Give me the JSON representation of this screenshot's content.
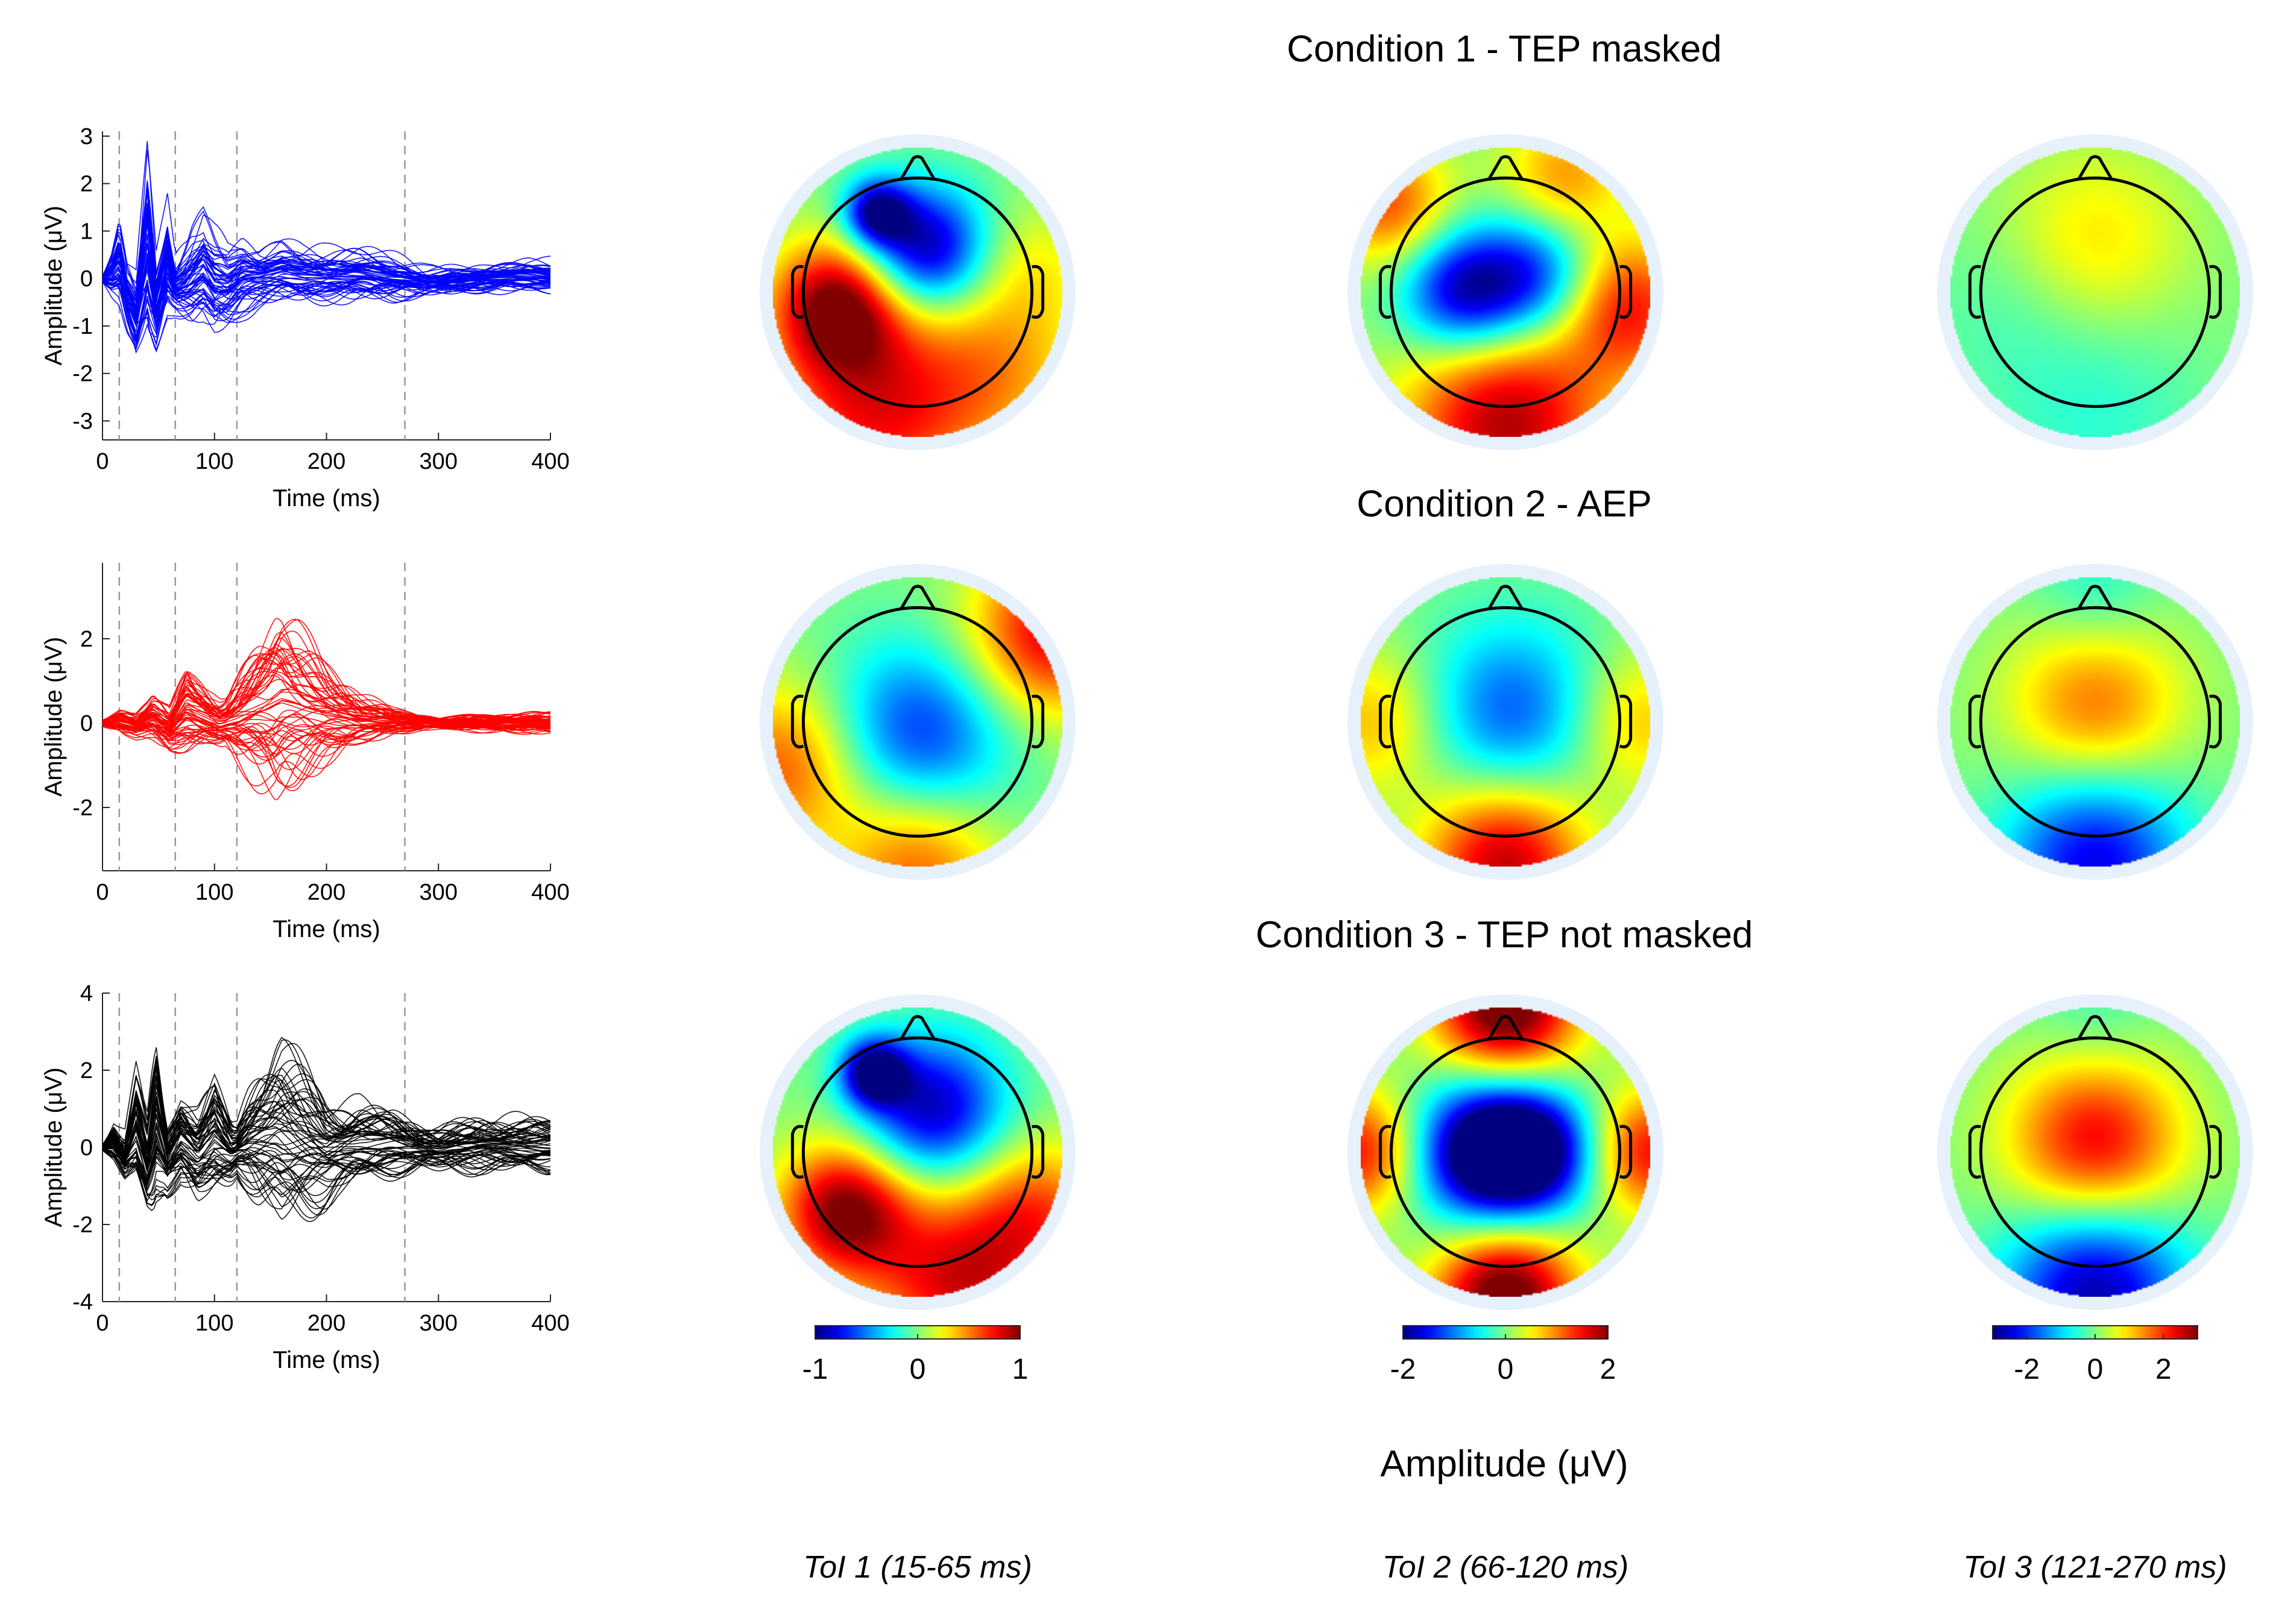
{
  "chart_data": {
    "type": "figure",
    "conditions": [
      {
        "title": "Condition 1 - TEP masked",
        "butterfly": {
          "type": "line",
          "color": "#0000ff",
          "xlabel": "Time (ms)",
          "ylabel": "Amplitude (μV)",
          "xlim": [
            0,
            400
          ],
          "ylim": [
            -3.4,
            3.1
          ],
          "xticks": [
            0,
            100,
            200,
            300,
            400
          ],
          "yticks": [
            -3,
            -2,
            -1,
            0,
            1,
            2,
            3
          ],
          "toi_lines_ms": [
            15,
            65,
            120,
            270
          ],
          "mean_waveform": [
            [
              0,
              0
            ],
            [
              8,
              0.2
            ],
            [
              15,
              0.7
            ],
            [
              22,
              -0.6
            ],
            [
              30,
              -1.3
            ],
            [
              40,
              1.3
            ],
            [
              48,
              -1.0
            ],
            [
              58,
              0.6
            ],
            [
              65,
              -0.4
            ],
            [
              75,
              -0.2
            ],
            [
              90,
              0.3
            ],
            [
              100,
              -0.2
            ],
            [
              112,
              -0.3
            ],
            [
              125,
              0.1
            ],
            [
              140,
              0.1
            ],
            [
              160,
              0.3
            ],
            [
              180,
              0.15
            ],
            [
              200,
              0.1
            ],
            [
              230,
              0.15
            ],
            [
              260,
              0.0
            ],
            [
              290,
              -0.1
            ],
            [
              320,
              -0.05
            ],
            [
              350,
              0.05
            ],
            [
              380,
              0.1
            ],
            [
              400,
              0.05
            ]
          ],
          "peak_spread": [
            [
              0,
              0.1
            ],
            [
              15,
              1.0
            ],
            [
              30,
              2.0
            ],
            [
              42,
              2.3
            ],
            [
              55,
              1.4
            ],
            [
              65,
              1.0
            ],
            [
              80,
              1.6
            ],
            [
              100,
              1.8
            ],
            [
              120,
              1.3
            ],
            [
              140,
              0.9
            ],
            [
              180,
              0.8
            ],
            [
              220,
              0.8
            ],
            [
              260,
              0.7
            ],
            [
              300,
              0.5
            ],
            [
              340,
              0.45
            ],
            [
              400,
              0.45
            ]
          ]
        },
        "topoplots": [
          {
            "window": "ToI 1",
            "pattern": [
              {
                "x": -0.55,
                "y": 0.1,
                "v": 1.0,
                "s": 0.32
              },
              {
                "x": 0.05,
                "y": -0.3,
                "v": -1.0,
                "s": 0.3
              },
              {
                "x": -0.28,
                "y": -0.55,
                "v": -0.9,
                "s": 0.16
              },
              {
                "x": -0.3,
                "y": 0.85,
                "v": 0.7,
                "s": 0.5
              },
              {
                "x": 0.55,
                "y": 0.5,
                "v": 0.4,
                "s": 0.45
              },
              {
                "x": 0.8,
                "y": -0.2,
                "v": 0.2,
                "s": 0.3
              }
            ]
          },
          {
            "window": "ToI 2",
            "pattern": [
              {
                "x": -0.3,
                "y": 0.0,
                "v": -1.8,
                "s": 0.3
              },
              {
                "x": 0.2,
                "y": -0.1,
                "v": -1.4,
                "s": 0.3
              },
              {
                "x": 0.0,
                "y": 0.9,
                "v": 1.8,
                "s": 0.5
              },
              {
                "x": 0.85,
                "y": 0.1,
                "v": 1.4,
                "s": 0.35
              },
              {
                "x": -0.8,
                "y": -0.6,
                "v": 1.2,
                "s": 0.3
              },
              {
                "x": 0.4,
                "y": -0.8,
                "v": 0.9,
                "s": 0.3
              }
            ]
          },
          {
            "window": "ToI 3",
            "pattern": [
              {
                "x": 0.0,
                "y": -0.35,
                "v": 0.9,
                "s": 0.45
              },
              {
                "x": 0.0,
                "y": 0.8,
                "v": -0.5,
                "s": 0.5
              },
              {
                "x": -0.6,
                "y": 0.1,
                "v": -0.3,
                "s": 0.4
              }
            ]
          }
        ]
      },
      {
        "title": "Condition 2 - AEP",
        "butterfly": {
          "type": "line",
          "color": "#ff0000",
          "xlabel": "Time (ms)",
          "ylabel": "Amplitude (μV)",
          "xlim": [
            0,
            400
          ],
          "ylim": [
            -3.5,
            3.8
          ],
          "xticks": [
            0,
            100,
            200,
            300,
            400
          ],
          "yticks": [
            -2,
            0,
            2
          ],
          "toi_lines_ms": [
            15,
            65,
            120,
            270
          ],
          "mean_waveform": [
            [
              0,
              0
            ],
            [
              15,
              0.1
            ],
            [
              30,
              -0.1
            ],
            [
              45,
              0.2
            ],
            [
              60,
              -0.3
            ],
            [
              75,
              0.5
            ],
            [
              90,
              0.2
            ],
            [
              105,
              -0.1
            ],
            [
              120,
              0.1
            ],
            [
              140,
              0.5
            ],
            [
              160,
              0.8
            ],
            [
              180,
              0.5
            ],
            [
              200,
              0.3
            ],
            [
              230,
              0.1
            ],
            [
              260,
              0.05
            ],
            [
              300,
              0
            ],
            [
              340,
              0
            ],
            [
              400,
              0
            ]
          ],
          "peak_spread": [
            [
              0,
              0.1
            ],
            [
              20,
              0.4
            ],
            [
              40,
              0.5
            ],
            [
              60,
              0.9
            ],
            [
              75,
              1.3
            ],
            [
              95,
              0.9
            ],
            [
              110,
              0.8
            ],
            [
              125,
              1.5
            ],
            [
              155,
              2.8
            ],
            [
              175,
              2.3
            ],
            [
              200,
              1.5
            ],
            [
              230,
              0.8
            ],
            [
              260,
              0.4
            ],
            [
              300,
              0.2
            ],
            [
              350,
              0.3
            ],
            [
              400,
              0.35
            ]
          ]
        },
        "topoplots": [
          {
            "window": "ToI 1",
            "pattern": [
              {
                "x": 0.0,
                "y": 0.1,
                "v": -0.7,
                "s": 0.45
              },
              {
                "x": 0.9,
                "y": -0.6,
                "v": 0.8,
                "s": 0.4
              },
              {
                "x": -0.9,
                "y": 0.3,
                "v": 0.6,
                "s": 0.4
              },
              {
                "x": 0.0,
                "y": 0.95,
                "v": 0.6,
                "s": 0.4
              }
            ]
          },
          {
            "window": "ToI 2",
            "pattern": [
              {
                "x": 0.05,
                "y": -0.05,
                "v": -1.2,
                "s": 0.45
              },
              {
                "x": 0.0,
                "y": 0.95,
                "v": 1.8,
                "s": 0.4
              },
              {
                "x": -0.9,
                "y": 0.0,
                "v": 0.8,
                "s": 0.35
              },
              {
                "x": 0.9,
                "y": 0.0,
                "v": 0.8,
                "s": 0.35
              }
            ]
          },
          {
            "window": "ToI 3",
            "pattern": [
              {
                "x": 0.0,
                "y": -0.1,
                "v": 1.6,
                "s": 0.42
              },
              {
                "x": 0.0,
                "y": 0.95,
                "v": -2.4,
                "s": 0.45
              },
              {
                "x": 0.0,
                "y": -0.9,
                "v": -0.6,
                "s": 0.3
              }
            ]
          }
        ]
      },
      {
        "title": "Condition 3 - TEP not masked",
        "butterfly": {
          "type": "line",
          "color": "#000000",
          "xlabel": "Time (ms)",
          "ylabel": "Amplitude (μV)",
          "xlim": [
            0,
            400
          ],
          "ylim": [
            -4,
            4
          ],
          "xticks": [
            0,
            100,
            200,
            300,
            400
          ],
          "yticks": [
            -4,
            -2,
            0,
            2,
            4
          ],
          "toi_lines_ms": [
            15,
            65,
            120,
            270
          ],
          "mean_waveform": [
            [
              0,
              0
            ],
            [
              10,
              0.2
            ],
            [
              20,
              -0.5
            ],
            [
              30,
              0.8
            ],
            [
              40,
              -0.8
            ],
            [
              48,
              1.0
            ],
            [
              58,
              -0.6
            ],
            [
              70,
              0.3
            ],
            [
              85,
              -0.4
            ],
            [
              100,
              0.4
            ],
            [
              115,
              -0.3
            ],
            [
              130,
              0.2
            ],
            [
              155,
              0.6
            ],
            [
              175,
              0.3
            ],
            [
              200,
              -0.2
            ],
            [
              230,
              0.1
            ],
            [
              260,
              0.1
            ],
            [
              300,
              -0.1
            ],
            [
              340,
              0.1
            ],
            [
              400,
              0.05
            ]
          ],
          "peak_spread": [
            [
              0,
              0.1
            ],
            [
              15,
              0.8
            ],
            [
              30,
              1.6
            ],
            [
              45,
              2.3
            ],
            [
              55,
              1.5
            ],
            [
              70,
              1.4
            ],
            [
              85,
              2.0
            ],
            [
              100,
              2.0
            ],
            [
              120,
              1.0
            ],
            [
              140,
              2.4
            ],
            [
              160,
              3.2
            ],
            [
              185,
              2.4
            ],
            [
              210,
              1.6
            ],
            [
              250,
              1.2
            ],
            [
              290,
              0.9
            ],
            [
              340,
              0.9
            ],
            [
              400,
              0.9
            ]
          ]
        },
        "topoplots": [
          {
            "window": "ToI 1",
            "pattern": [
              {
                "x": -0.5,
                "y": 0.4,
                "v": 1.0,
                "s": 0.32
              },
              {
                "x": 0.1,
                "y": -0.3,
                "v": -0.9,
                "s": 0.35
              },
              {
                "x": -0.3,
                "y": -0.55,
                "v": -1.0,
                "s": 0.16
              },
              {
                "x": 0.3,
                "y": 0.9,
                "v": 0.8,
                "s": 0.45
              },
              {
                "x": 0.85,
                "y": 0.4,
                "v": 0.5,
                "s": 0.35
              }
            ]
          },
          {
            "window": "ToI 2",
            "pattern": [
              {
                "x": -0.15,
                "y": 0.0,
                "v": -2.3,
                "s": 0.35
              },
              {
                "x": 0.2,
                "y": 0.0,
                "v": -1.8,
                "s": 0.3
              },
              {
                "x": 0.0,
                "y": -1.0,
                "v": 2.3,
                "s": 0.35
              },
              {
                "x": 0.0,
                "y": 1.0,
                "v": 2.3,
                "s": 0.35
              },
              {
                "x": -1.0,
                "y": 0.0,
                "v": 1.5,
                "s": 0.3
              },
              {
                "x": 1.0,
                "y": 0.0,
                "v": 1.5,
                "s": 0.3
              }
            ]
          },
          {
            "window": "ToI 3",
            "pattern": [
              {
                "x": 0.0,
                "y": -0.05,
                "v": 2.4,
                "s": 0.42
              },
              {
                "x": 0.0,
                "y": 0.95,
                "v": -2.8,
                "s": 0.45
              },
              {
                "x": 0.0,
                "y": -0.95,
                "v": -0.4,
                "s": 0.3
              }
            ]
          }
        ]
      }
    ],
    "colorbars": [
      {
        "limits": [
          -1,
          1
        ],
        "ticks": [
          -1,
          0,
          1
        ]
      },
      {
        "limits": [
          -2,
          2
        ],
        "ticks": [
          -2,
          0,
          2
        ]
      },
      {
        "limits": [
          -3,
          3
        ],
        "ticks": [
          -2,
          0,
          2
        ]
      }
    ],
    "colorbar_label": "Amplitude (μV)",
    "toi_labels": [
      "ToI 1 (15-65 ms)",
      "ToI 2 (66-120 ms)",
      "ToI 3 (121-270 ms)"
    ]
  }
}
